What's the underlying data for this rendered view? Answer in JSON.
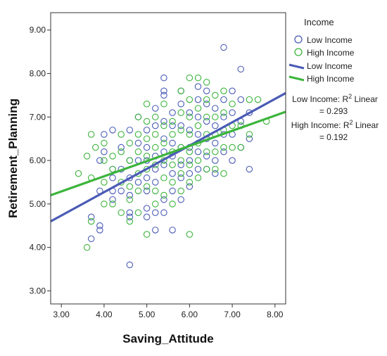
{
  "chart_data": {
    "type": "scatter",
    "xlabel": "Saving_Attitude",
    "ylabel": "Retirement_Planning",
    "xlim": [
      2.75,
      8.25
    ],
    "ylim": [
      2.7,
      9.4
    ],
    "x_ticks": [
      "3.00",
      "4.00",
      "5.00",
      "6.00",
      "7.00",
      "8.00"
    ],
    "y_ticks": [
      "3.00",
      "4.00",
      "5.00",
      "6.00",
      "7.00",
      "8.00",
      "9.00"
    ],
    "grid": false,
    "legend": {
      "title": "Income",
      "position": "right",
      "markers": [
        "Low Income",
        "High Income"
      ],
      "lines": [
        "Low Income",
        "High Income"
      ]
    },
    "series": [
      {
        "name": "Low Income",
        "color": "#4a5bb5",
        "points": [
          [
            3.7,
            4.7
          ],
          [
            3.7,
            4.2
          ],
          [
            3.9,
            4.5
          ],
          [
            3.9,
            4.4
          ],
          [
            3.9,
            5.3
          ],
          [
            3.9,
            6.0
          ],
          [
            4.0,
            6.2
          ],
          [
            4.0,
            6.6
          ],
          [
            4.2,
            6.7
          ],
          [
            4.2,
            5.8
          ],
          [
            4.2,
            5.6
          ],
          [
            4.2,
            5.3
          ],
          [
            4.2,
            5.1
          ],
          [
            4.4,
            5.8
          ],
          [
            4.4,
            5.3
          ],
          [
            4.4,
            6.3
          ],
          [
            4.6,
            6.0
          ],
          [
            4.6,
            5.6
          ],
          [
            4.6,
            5.2
          ],
          [
            4.6,
            4.8
          ],
          [
            4.6,
            4.7
          ],
          [
            4.6,
            3.6
          ],
          [
            4.6,
            6.7
          ],
          [
            4.8,
            6.4
          ],
          [
            4.8,
            6.0
          ],
          [
            4.8,
            5.5
          ],
          [
            4.8,
            7.0
          ],
          [
            5.0,
            6.3
          ],
          [
            5.0,
            6.0
          ],
          [
            5.0,
            5.6
          ],
          [
            5.0,
            5.3
          ],
          [
            5.0,
            4.9
          ],
          [
            5.0,
            4.7
          ],
          [
            5.0,
            6.7
          ],
          [
            5.2,
            7.2
          ],
          [
            5.2,
            6.8
          ],
          [
            5.2,
            6.1
          ],
          [
            5.2,
            5.8
          ],
          [
            5.2,
            5.5
          ],
          [
            5.2,
            4.4
          ],
          [
            5.2,
            4.8
          ],
          [
            5.4,
            7.9
          ],
          [
            5.4,
            7.5
          ],
          [
            5.4,
            7.6
          ],
          [
            5.4,
            6.9
          ],
          [
            5.4,
            6.2
          ],
          [
            5.4,
            5.9
          ],
          [
            5.4,
            5.1
          ],
          [
            5.4,
            4.8
          ],
          [
            5.4,
            6.5
          ],
          [
            5.6,
            6.8
          ],
          [
            5.6,
            6.4
          ],
          [
            5.6,
            6.1
          ],
          [
            5.6,
            5.7
          ],
          [
            5.6,
            5.3
          ],
          [
            5.6,
            4.4
          ],
          [
            5.6,
            7.1
          ],
          [
            5.8,
            7.3
          ],
          [
            5.8,
            6.8
          ],
          [
            5.8,
            6.3
          ],
          [
            5.8,
            5.9
          ],
          [
            5.8,
            5.6
          ],
          [
            5.8,
            5.1
          ],
          [
            5.8,
            7.6
          ],
          [
            6.0,
            7.1
          ],
          [
            6.0,
            6.7
          ],
          [
            6.0,
            6.3
          ],
          [
            6.0,
            6.0
          ],
          [
            6.0,
            5.7
          ],
          [
            6.0,
            5.4
          ],
          [
            6.2,
            7.4
          ],
          [
            6.2,
            7.0
          ],
          [
            6.2,
            6.6
          ],
          [
            6.2,
            6.2
          ],
          [
            6.2,
            5.8
          ],
          [
            6.2,
            7.7
          ],
          [
            6.4,
            7.3
          ],
          [
            6.4,
            6.9
          ],
          [
            6.4,
            6.5
          ],
          [
            6.4,
            6.1
          ],
          [
            6.4,
            5.8
          ],
          [
            6.4,
            7.6
          ],
          [
            6.6,
            7.2
          ],
          [
            6.6,
            6.8
          ],
          [
            6.6,
            6.4
          ],
          [
            6.6,
            6.0
          ],
          [
            6.6,
            5.7
          ],
          [
            6.8,
            8.6
          ],
          [
            6.8,
            7.4
          ],
          [
            6.8,
            7.0
          ],
          [
            6.8,
            6.6
          ],
          [
            6.8,
            6.2
          ],
          [
            7.0,
            7.6
          ],
          [
            7.0,
            7.1
          ],
          [
            7.0,
            6.6
          ],
          [
            7.0,
            6.0
          ],
          [
            7.2,
            8.1
          ],
          [
            7.2,
            7.4
          ],
          [
            7.2,
            6.9
          ],
          [
            7.2,
            6.3
          ],
          [
            7.4,
            7.1
          ],
          [
            7.4,
            6.5
          ],
          [
            7.4,
            5.8
          ]
        ]
      },
      {
        "name": "High Income",
        "color": "#3cb43c",
        "points": [
          [
            3.4,
            5.7
          ],
          [
            3.6,
            6.1
          ],
          [
            3.6,
            4.0
          ],
          [
            3.7,
            6.6
          ],
          [
            3.7,
            5.6
          ],
          [
            3.7,
            4.6
          ],
          [
            3.8,
            6.3
          ],
          [
            4.0,
            6.4
          ],
          [
            4.0,
            6.0
          ],
          [
            4.0,
            5.5
          ],
          [
            4.0,
            5.0
          ],
          [
            4.2,
            6.1
          ],
          [
            4.2,
            5.8
          ],
          [
            4.2,
            5.0
          ],
          [
            4.4,
            6.6
          ],
          [
            4.4,
            6.2
          ],
          [
            4.4,
            5.5
          ],
          [
            4.4,
            4.8
          ],
          [
            4.6,
            6.4
          ],
          [
            4.6,
            6.0
          ],
          [
            4.6,
            5.4
          ],
          [
            4.6,
            5.1
          ],
          [
            4.6,
            4.6
          ],
          [
            4.8,
            7.0
          ],
          [
            4.8,
            6.6
          ],
          [
            4.8,
            6.2
          ],
          [
            4.8,
            5.7
          ],
          [
            4.8,
            5.3
          ],
          [
            4.8,
            4.8
          ],
          [
            5.0,
            7.3
          ],
          [
            5.0,
            6.9
          ],
          [
            5.0,
            6.5
          ],
          [
            5.0,
            6.1
          ],
          [
            5.0,
            5.8
          ],
          [
            5.0,
            5.4
          ],
          [
            5.0,
            4.3
          ],
          [
            5.2,
            7.0
          ],
          [
            5.2,
            6.6
          ],
          [
            5.2,
            6.3
          ],
          [
            5.2,
            5.9
          ],
          [
            5.2,
            5.3
          ],
          [
            5.2,
            5.0
          ],
          [
            5.4,
            7.3
          ],
          [
            5.4,
            6.8
          ],
          [
            5.4,
            6.4
          ],
          [
            5.4,
            6.0
          ],
          [
            5.4,
            5.6
          ],
          [
            5.4,
            5.2
          ],
          [
            5.6,
            6.9
          ],
          [
            5.6,
            6.6
          ],
          [
            5.6,
            6.2
          ],
          [
            5.6,
            5.9
          ],
          [
            5.6,
            5.5
          ],
          [
            5.6,
            5.0
          ],
          [
            5.8,
            7.6
          ],
          [
            5.8,
            7.1
          ],
          [
            5.8,
            6.7
          ],
          [
            5.8,
            6.3
          ],
          [
            5.8,
            6.0
          ],
          [
            5.8,
            5.7
          ],
          [
            5.8,
            5.3
          ],
          [
            6.0,
            7.9
          ],
          [
            6.0,
            7.4
          ],
          [
            6.0,
            7.0
          ],
          [
            6.0,
            6.6
          ],
          [
            6.0,
            6.2
          ],
          [
            6.0,
            5.9
          ],
          [
            6.0,
            5.5
          ],
          [
            6.0,
            4.3
          ],
          [
            6.2,
            7.9
          ],
          [
            6.2,
            7.2
          ],
          [
            6.2,
            6.8
          ],
          [
            6.2,
            6.4
          ],
          [
            6.2,
            6.0
          ],
          [
            6.2,
            5.6
          ],
          [
            6.4,
            7.8
          ],
          [
            6.4,
            7.4
          ],
          [
            6.4,
            7.0
          ],
          [
            6.4,
            6.6
          ],
          [
            6.4,
            6.2
          ],
          [
            6.4,
            5.8
          ],
          [
            6.6,
            7.5
          ],
          [
            6.6,
            7.0
          ],
          [
            6.6,
            6.6
          ],
          [
            6.6,
            6.2
          ],
          [
            6.6,
            5.8
          ],
          [
            6.8,
            7.6
          ],
          [
            6.8,
            7.1
          ],
          [
            6.8,
            6.7
          ],
          [
            6.8,
            6.3
          ],
          [
            6.8,
            5.7
          ],
          [
            7.0,
            7.3
          ],
          [
            7.0,
            6.8
          ],
          [
            7.0,
            6.3
          ],
          [
            7.2,
            6.8
          ],
          [
            7.2,
            6.3
          ],
          [
            7.4,
            7.4
          ],
          [
            7.4,
            6.6
          ],
          [
            7.6,
            7.4
          ],
          [
            7.8,
            6.9
          ]
        ]
      }
    ],
    "fit_lines": [
      {
        "name": "Low Income",
        "color": "#4a5bb5",
        "x": [
          2.75,
          8.25
        ],
        "y": [
          4.6,
          7.55
        ]
      },
      {
        "name": "High Income",
        "color": "#3cb43c",
        "x": [
          2.75,
          8.25
        ],
        "y": [
          5.2,
          7.12
        ]
      }
    ],
    "annotations": [
      {
        "series": "Low Income",
        "line1_prefix": "Low Income: R",
        "sup": "2",
        "line1_suffix": " Linear",
        "line2": "= 0.293"
      },
      {
        "series": "High Income",
        "line1_prefix": "High Income: R",
        "sup": "2",
        "line1_suffix": " Linear",
        "line2": "= 0.192"
      }
    ]
  }
}
